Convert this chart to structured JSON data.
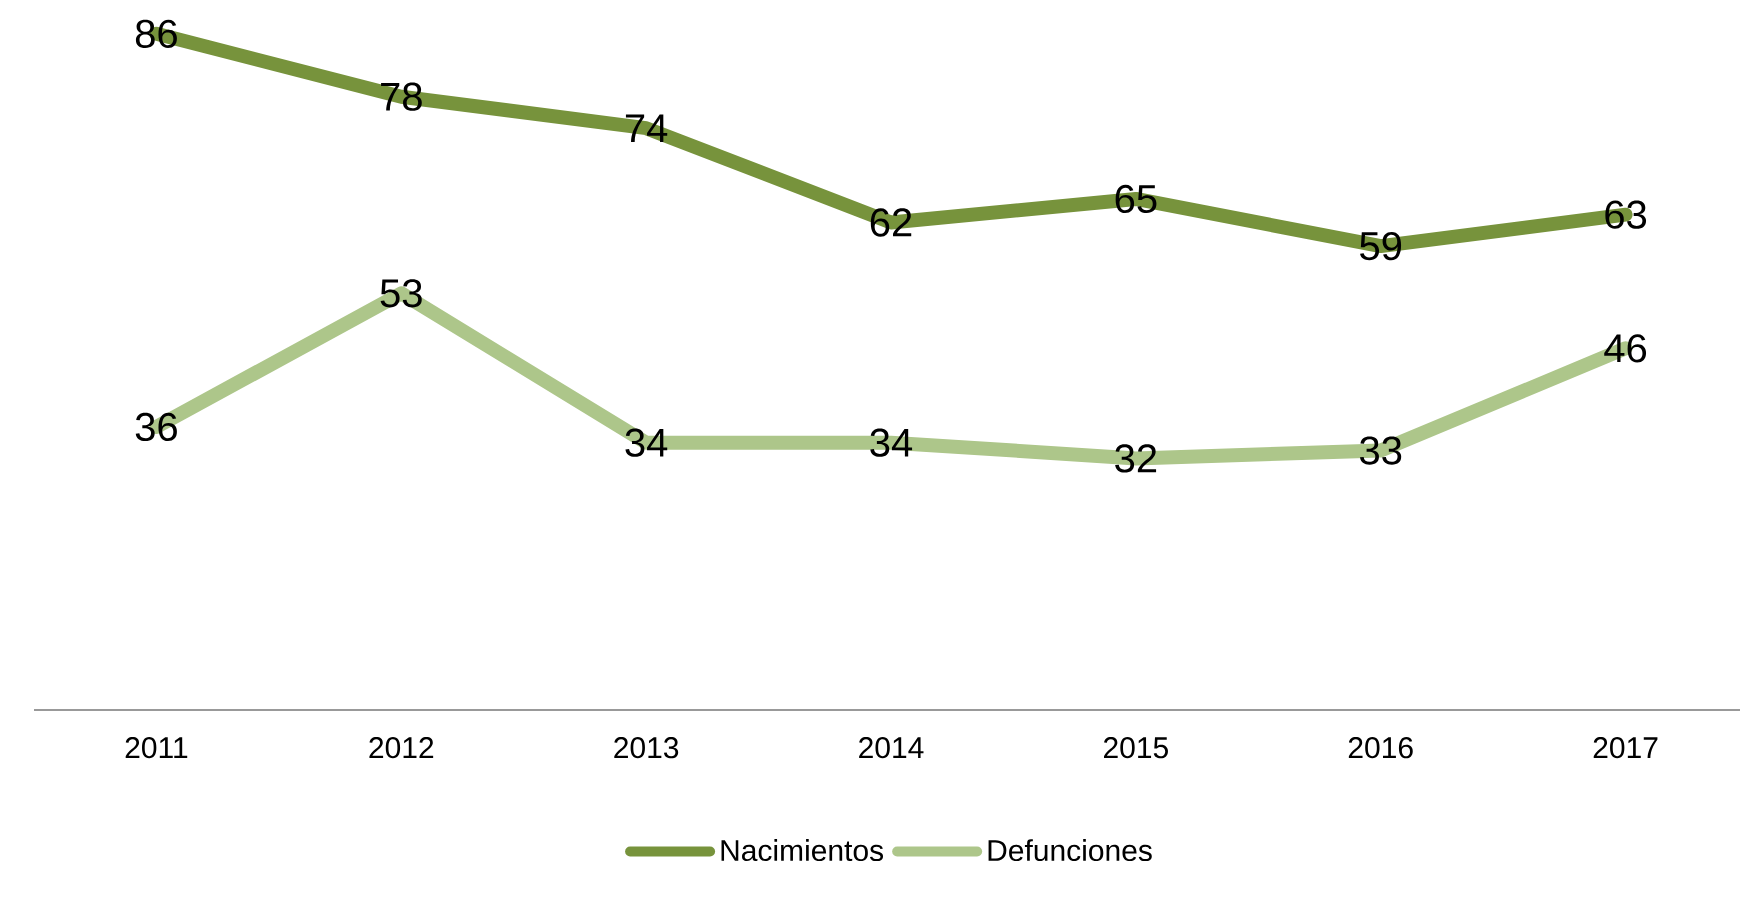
{
  "chart_data": {
    "type": "line",
    "categories": [
      "2011",
      "2012",
      "2013",
      "2014",
      "2015",
      "2016",
      "2017"
    ],
    "series": [
      {
        "name": "Nacimientos",
        "color": "#77933c",
        "values": [
          86,
          78,
          74,
          62,
          65,
          59,
          63
        ]
      },
      {
        "name": "Defunciones",
        "color": "#adc68a",
        "values": [
          36,
          53,
          34,
          34,
          32,
          33,
          46
        ]
      }
    ],
    "data_labels": true,
    "grid": false,
    "legend": "bottom",
    "marker": "none",
    "line_style": "solid"
  }
}
